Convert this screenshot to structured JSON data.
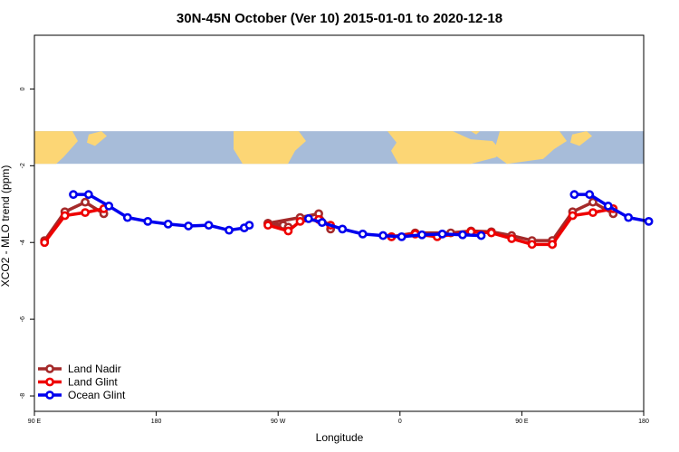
{
  "chart_data": {
    "type": "line",
    "title": "30N-45N October (Ver 10)   2015-01-01 to 2020-12-18",
    "xlabel": "Longitude",
    "ylabel": "XCO2 - MLO trend (ppm)",
    "xlim": [
      0,
      360
    ],
    "ylim": [
      -8.4,
      1.4
    ],
    "x_ticks": [
      {
        "x": 0,
        "label": "90 E"
      },
      {
        "x": 72,
        "label": "180"
      },
      {
        "x": 144,
        "label": "90 W"
      },
      {
        "x": 216,
        "label": "0"
      },
      {
        "x": 288,
        "label": "90 E"
      },
      {
        "x": 360,
        "label": "180"
      }
    ],
    "y_ticks": [
      {
        "y": 0,
        "label": "0"
      },
      {
        "y": -2,
        "label": "-2"
      },
      {
        "y": -4,
        "label": "-4"
      },
      {
        "y": -6,
        "label": "-6"
      },
      {
        "y": -8,
        "label": "-8"
      }
    ],
    "grid": false,
    "legend_position": "bottom-left",
    "map_band": {
      "y_top": -1.1,
      "y_bottom": -1.95,
      "ocean_color": "#a7bcd9",
      "land_color": "#fcd675"
    },
    "series": [
      {
        "name": "Land Nadir",
        "color": "#a52a2a",
        "segments": [
          [
            [
              6,
              -3.95
            ],
            [
              18,
              -3.2
            ],
            [
              30,
              -2.95
            ],
            [
              41,
              -3.25
            ]
          ],
          [
            [
              138,
              -3.5
            ],
            [
              147,
              -3.55
            ]
          ],
          [
            [
              138,
              -3.5
            ],
            [
              150,
              -3.6
            ]
          ],
          [
            [
              138,
              -3.5
            ],
            [
              157,
              -3.35
            ],
            [
              168,
              -3.25
            ],
            [
              175,
              -3.65
            ]
          ],
          [
            [
              211,
              -3.85
            ],
            [
              225,
              -3.75
            ],
            [
              246,
              -3.75
            ],
            [
              258,
              -3.7
            ],
            [
              270,
              -3.72
            ],
            [
              282,
              -3.82
            ],
            [
              294,
              -3.95
            ],
            [
              306,
              -3.95
            ]
          ],
          [
            [
              306,
              -3.95
            ],
            [
              318,
              -3.2
            ],
            [
              330,
              -2.95
            ],
            [
              342,
              -3.25
            ]
          ]
        ]
      },
      {
        "name": "Land Glint",
        "color": "#ee0000",
        "segments": [
          [
            [
              6,
              -4.0
            ],
            [
              18,
              -3.3
            ],
            [
              30,
              -3.22
            ],
            [
              41,
              -3.12
            ]
          ],
          [
            [
              138,
              -3.55
            ],
            [
              150,
              -3.7
            ],
            [
              157,
              -3.45
            ],
            [
              168,
              -3.4
            ],
            [
              175,
              -3.55
            ]
          ],
          [
            [
              211,
              -3.85
            ],
            [
              225,
              -3.78
            ],
            [
              238,
              -3.85
            ],
            [
              258,
              -3.72
            ],
            [
              270,
              -3.75
            ],
            [
              282,
              -3.9
            ],
            [
              294,
              -4.05
            ],
            [
              306,
              -4.05
            ]
          ],
          [
            [
              306,
              -4.05
            ],
            [
              318,
              -3.3
            ],
            [
              330,
              -3.22
            ],
            [
              342,
              -3.12
            ]
          ]
        ]
      },
      {
        "name": "Ocean Glint",
        "color": "#0000ee",
        "segments": [
          [
            [
              23,
              -2.75
            ],
            [
              32,
              -2.75
            ],
            [
              44,
              -3.05
            ],
            [
              55,
              -3.35
            ],
            [
              67,
              -3.45
            ],
            [
              79,
              -3.52
            ],
            [
              91,
              -3.57
            ],
            [
              103,
              -3.55
            ],
            [
              115,
              -3.68
            ],
            [
              124,
              -3.62
            ]
          ],
          [
            [
              124,
              -3.62
            ],
            [
              127,
              -3.55
            ]
          ],
          [
            [
              162,
              -3.38
            ],
            [
              170,
              -3.48
            ],
            [
              182,
              -3.65
            ],
            [
              194,
              -3.78
            ],
            [
              206,
              -3.82
            ],
            [
              217,
              -3.85
            ],
            [
              229,
              -3.8
            ],
            [
              241,
              -3.78
            ],
            [
              253,
              -3.8
            ],
            [
              264,
              -3.82
            ]
          ],
          [
            [
              319,
              -2.75
            ],
            [
              328,
              -2.75
            ],
            [
              339,
              -3.05
            ],
            [
              351,
              -3.35
            ],
            [
              363,
              -3.45
            ]
          ]
        ]
      }
    ]
  }
}
